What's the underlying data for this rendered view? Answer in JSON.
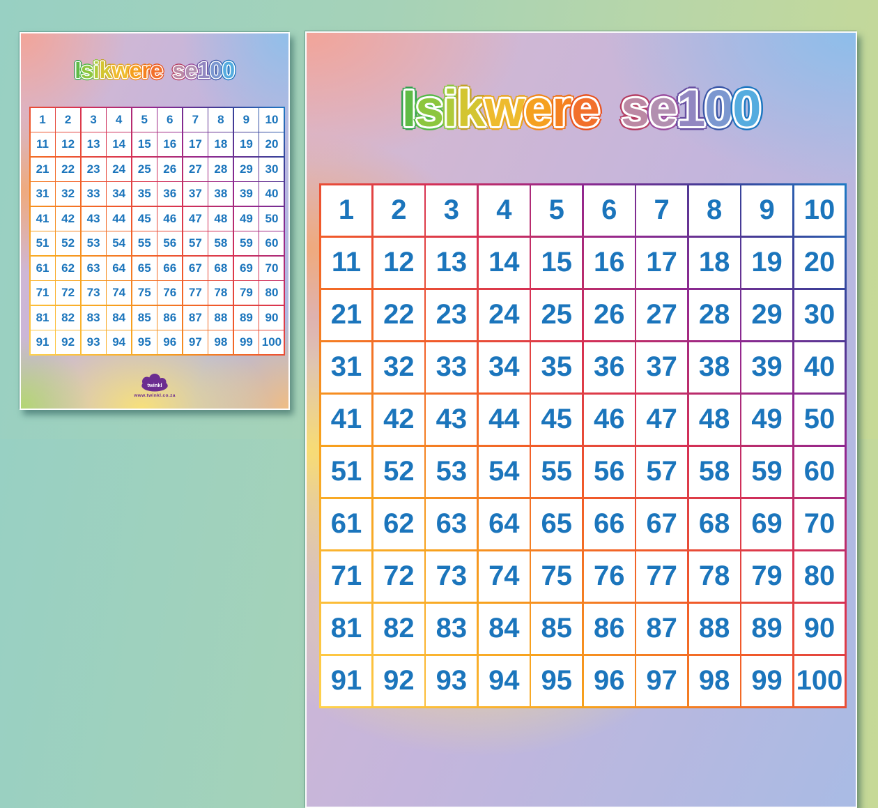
{
  "poster": {
    "title_text": "Isikwere se100",
    "title_letters": [
      {
        "ch": "I",
        "fill": "#5fbb46",
        "edge": "#2fa14b"
      },
      {
        "ch": "s",
        "fill": "#8cc63e",
        "edge": "#55b948"
      },
      {
        "ch": "i",
        "fill": "#aecb3a",
        "edge": "#8cc63f"
      },
      {
        "ch": "k",
        "fill": "#d3c531",
        "edge": "#c2a227"
      },
      {
        "ch": "w",
        "fill": "#eebb2e",
        "edge": "#e9a620"
      },
      {
        "ch": "e",
        "fill": "#f5a01f",
        "edge": "#f18a1d"
      },
      {
        "ch": "r",
        "fill": "#f58220",
        "edge": "#ee7216"
      },
      {
        "ch": "e",
        "fill": "#f2702b",
        "edge": "#e8531f"
      },
      {
        "ch": " ",
        "fill": "",
        "edge": ""
      },
      {
        "ch": "s",
        "fill": "#bb89a4",
        "edge": "#b43d62"
      },
      {
        "ch": "e",
        "fill": "#b28fb0",
        "edge": "#9a4e9e"
      },
      {
        "ch": "1",
        "fill": "#9287c1",
        "edge": "#674ea1"
      },
      {
        "ch": "0",
        "fill": "#7b97d0",
        "edge": "#3a57a7"
      },
      {
        "ch": "0",
        "fill": "#55acdf",
        "edge": "#1b76c0"
      }
    ],
    "number_color": "#1b75bc",
    "logo_text": "twinkl",
    "watermark_url": "www.twinkl.co.za"
  },
  "grid": {
    "rows": [
      [
        1,
        2,
        3,
        4,
        5,
        6,
        7,
        8,
        9,
        10
      ],
      [
        11,
        12,
        13,
        14,
        15,
        16,
        17,
        18,
        19,
        20
      ],
      [
        21,
        22,
        23,
        24,
        25,
        26,
        27,
        28,
        29,
        30
      ],
      [
        31,
        32,
        33,
        34,
        35,
        36,
        37,
        38,
        39,
        40
      ],
      [
        41,
        42,
        43,
        44,
        45,
        46,
        47,
        48,
        49,
        50
      ],
      [
        51,
        52,
        53,
        54,
        55,
        56,
        57,
        58,
        59,
        60
      ],
      [
        61,
        62,
        63,
        64,
        65,
        66,
        67,
        68,
        69,
        70
      ],
      [
        71,
        72,
        73,
        74,
        75,
        76,
        77,
        78,
        79,
        80
      ],
      [
        81,
        82,
        83,
        84,
        85,
        86,
        87,
        88,
        89,
        90
      ],
      [
        91,
        92,
        93,
        94,
        95,
        96,
        97,
        98,
        99,
        100
      ]
    ]
  },
  "colors": {
    "page_background_left": "#98d0c3",
    "page_background_right": "#c7d996",
    "grid_number_blue": "#1b75bc",
    "logo_purple": "#6b2d90"
  }
}
